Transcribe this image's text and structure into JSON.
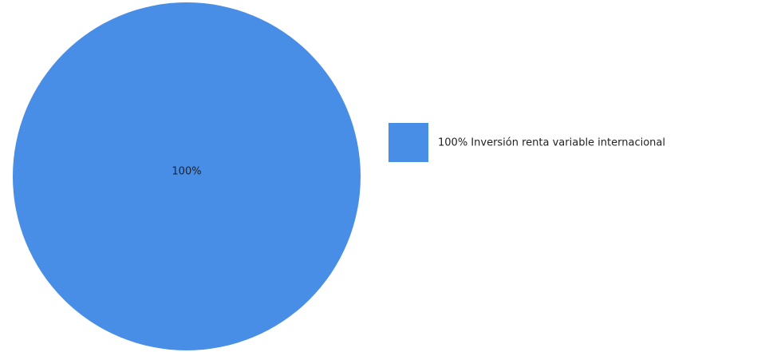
{
  "chart_data": {
    "type": "pie",
    "slices": [
      {
        "label": "Inversión renta variable internacional",
        "value": 100,
        "value_label": "100%",
        "legend_label": "100% Inversión renta variable internacional",
        "color": "#488de6"
      }
    ],
    "legend_placement": "right",
    "grid": false
  }
}
